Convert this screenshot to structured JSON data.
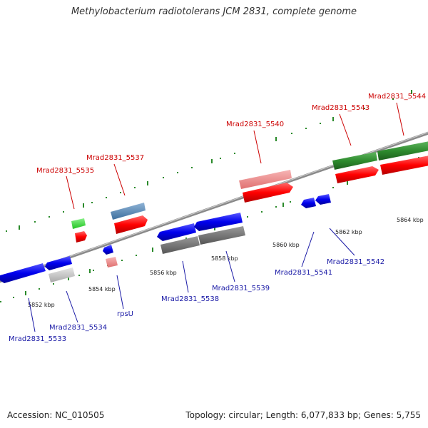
{
  "title": "Methylobacterium radiotolerans JCM 2831, complete genome",
  "footer": {
    "accession": "Accession: NC_010505",
    "summary": "Topology: circular; Length: 6,077,833 bp; Genes: 5,755"
  },
  "scale_labels": [
    "5852 kbp",
    "5854 kbp",
    "5856 kbp",
    "5858 kbp",
    "5860 kbp",
    "5862 kbp",
    "5864 kbp"
  ],
  "gene_labels": {
    "forward": [
      "Mrad2831_5535",
      "Mrad2831_5537",
      "Mrad2831_5540",
      "Mrad2831_5543",
      "Mrad2831_5544"
    ],
    "reverse": [
      "Mrad2831_5533",
      "Mrad2831_5534",
      "rpsU",
      "Mrad2831_5538",
      "Mrad2831_5539",
      "Mrad2831_5541",
      "Mrad2831_5542"
    ]
  },
  "colors": {
    "forward_label": "#cc0000",
    "reverse_label": "#1a1aa6",
    "forward_gene": "#ff0000",
    "reverse_gene": "#0000ee",
    "track_green": "#2e8b2e",
    "backbone": "#8a8a8a"
  }
}
